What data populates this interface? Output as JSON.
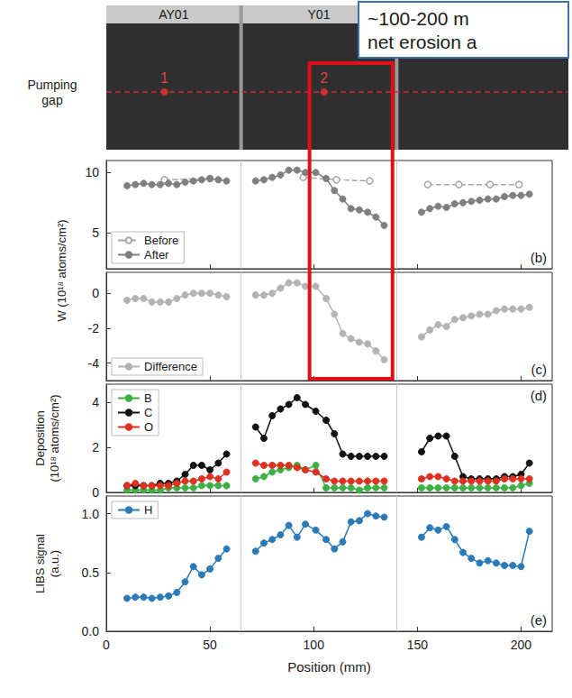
{
  "photo": {
    "side_label": "Pumping gap",
    "tiles": [
      "AY01",
      "Y01"
    ],
    "points": [
      {
        "label": "1",
        "position": 28
      },
      {
        "label": "2",
        "position": 105
      }
    ]
  },
  "annotation": {
    "lines": [
      "~100-200 m",
      "net erosion a"
    ]
  },
  "highlight": {
    "from": 98,
    "to": 138
  },
  "tile_edges": [
    65,
    140
  ],
  "chart_data": [
    {
      "type": "line",
      "label": "(b)",
      "ylabel": "W (10¹⁸ atoms/cm²)",
      "xlim": [
        0,
        215
      ],
      "xticks": [
        0,
        50,
        100,
        150,
        200
      ],
      "ylim": [
        2,
        11
      ],
      "yticks": [
        5,
        10
      ],
      "tick_labels": "y",
      "legend": "lower left",
      "series": [
        {
          "name": "Before",
          "color": "#a6a6a6",
          "marker": "open_circle",
          "line_style": "dashed",
          "x": [
            28,
            50,
            65,
            95,
            111,
            127,
            145,
            155,
            170,
            185,
            199
          ],
          "values": [
            9.4,
            9.5,
            null,
            9.6,
            9.4,
            9.3,
            null,
            9.0,
            9.0,
            9.0,
            9.0
          ]
        },
        {
          "name": "After",
          "color": "#7f7f7f",
          "marker": "circle",
          "line_style": "solid",
          "x": [
            10,
            14,
            18,
            22,
            26,
            30,
            34,
            38,
            42,
            46,
            50,
            54,
            58,
            65,
            72,
            76,
            80,
            84,
            88,
            92,
            96,
            101,
            106,
            110,
            114,
            118,
            122,
            126,
            130,
            134,
            145,
            152,
            156,
            160,
            164,
            168,
            172,
            176,
            180,
            184,
            188,
            192,
            196,
            200,
            204
          ],
          "values": [
            8.9,
            9.0,
            9.1,
            9.0,
            9.0,
            9.1,
            9.0,
            9.2,
            9.3,
            9.4,
            9.5,
            9.4,
            9.3,
            null,
            9.3,
            9.4,
            9.6,
            9.8,
            10.2,
            10.2,
            10.0,
            10.0,
            9.5,
            8.5,
            7.8,
            7.0,
            6.9,
            6.7,
            6.3,
            5.6,
            null,
            6.7,
            7.0,
            7.2,
            7.1,
            7.4,
            7.5,
            7.6,
            7.7,
            7.8,
            7.8,
            8.0,
            8.1,
            8.1,
            8.2
          ]
        }
      ]
    },
    {
      "type": "line",
      "label": "(c)",
      "xlim": [
        0,
        215
      ],
      "xticks": [
        0,
        50,
        100,
        150,
        200
      ],
      "ylim": [
        -5,
        1.2
      ],
      "yticks": [
        -4,
        -2,
        0
      ],
      "tick_labels": "y",
      "legend": "lower left",
      "series": [
        {
          "name": "Difference",
          "color": "#b3b3b3",
          "marker": "circle",
          "line_style": "solid",
          "x": [
            10,
            14,
            18,
            22,
            26,
            30,
            34,
            38,
            42,
            46,
            50,
            54,
            58,
            65,
            72,
            76,
            80,
            84,
            88,
            92,
            96,
            101,
            106,
            110,
            114,
            118,
            122,
            126,
            130,
            134,
            145,
            152,
            156,
            160,
            164,
            168,
            172,
            176,
            180,
            184,
            188,
            192,
            196,
            200,
            204
          ],
          "values": [
            -0.4,
            -0.3,
            -0.3,
            -0.5,
            -0.5,
            -0.5,
            -0.3,
            -0.1,
            0.0,
            0.0,
            0.0,
            -0.1,
            -0.2,
            null,
            -0.1,
            -0.1,
            0.0,
            0.3,
            0.6,
            0.6,
            0.4,
            0.4,
            -0.3,
            -1.2,
            -2.3,
            -2.6,
            -2.8,
            -2.9,
            -3.3,
            -3.8,
            null,
            -2.5,
            -2.1,
            -1.8,
            -1.9,
            -1.5,
            -1.4,
            -1.3,
            -1.2,
            -1.2,
            -1.0,
            -0.9,
            -0.9,
            -0.9,
            -0.8
          ]
        }
      ]
    },
    {
      "type": "line",
      "label": "(d)",
      "ylabel": "Deposition\n(10¹⁸ atoms/cm²)",
      "xlim": [
        0,
        215
      ],
      "xticks": [
        0,
        50,
        100,
        150,
        200
      ],
      "ylim": [
        0,
        4.8
      ],
      "yticks": [
        0,
        2,
        4
      ],
      "tick_labels": "y",
      "legend": "upper left",
      "series": [
        {
          "name": "B",
          "color": "#3cb043",
          "marker": "circle",
          "line_style": "solid",
          "x": [
            10,
            14,
            18,
            22,
            26,
            30,
            34,
            38,
            42,
            46,
            50,
            54,
            58,
            65,
            72,
            76,
            80,
            84,
            88,
            92,
            96,
            101,
            106,
            110,
            114,
            118,
            122,
            126,
            130,
            134,
            145,
            152,
            156,
            160,
            164,
            168,
            172,
            176,
            180,
            184,
            188,
            192,
            196,
            200,
            204
          ],
          "values": [
            0.1,
            0.1,
            0.1,
            0.1,
            0.1,
            0.2,
            0.2,
            0.2,
            0.2,
            0.3,
            0.3,
            0.3,
            0.3,
            null,
            0.6,
            0.7,
            0.9,
            1.0,
            1.1,
            1.2,
            1.0,
            1.2,
            0.2,
            0.2,
            0.2,
            0.2,
            0.1,
            0.2,
            0.2,
            0.2,
            null,
            0.2,
            0.2,
            0.2,
            0.2,
            0.2,
            0.2,
            0.2,
            0.2,
            0.2,
            0.2,
            0.2,
            0.2,
            0.3,
            0.4
          ]
        },
        {
          "name": "C",
          "color": "#111111",
          "marker": "circle",
          "line_style": "solid",
          "x": [
            10,
            14,
            18,
            22,
            26,
            30,
            34,
            38,
            42,
            46,
            50,
            54,
            58,
            65,
            72,
            76,
            80,
            84,
            88,
            92,
            96,
            101,
            106,
            110,
            114,
            118,
            122,
            126,
            130,
            134,
            145,
            152,
            156,
            160,
            164,
            168,
            172,
            176,
            180,
            184,
            188,
            192,
            196,
            200,
            204
          ],
          "values": [
            0.3,
            0.3,
            0.3,
            0.3,
            0.4,
            0.4,
            0.5,
            0.8,
            1.2,
            1.2,
            1.0,
            1.3,
            1.7,
            null,
            2.9,
            2.4,
            3.4,
            3.7,
            3.9,
            4.2,
            3.9,
            3.6,
            3.2,
            2.6,
            1.7,
            1.6,
            1.6,
            1.6,
            1.6,
            1.6,
            null,
            1.8,
            2.4,
            2.5,
            2.5,
            1.6,
            0.7,
            0.6,
            0.6,
            0.6,
            0.6,
            0.7,
            0.7,
            0.8,
            1.3
          ]
        },
        {
          "name": "O",
          "color": "#e0301e",
          "marker": "circle",
          "line_style": "solid",
          "x": [
            10,
            14,
            18,
            22,
            26,
            30,
            34,
            38,
            42,
            46,
            50,
            54,
            58,
            65,
            72,
            76,
            80,
            84,
            88,
            92,
            96,
            101,
            106,
            110,
            114,
            118,
            122,
            126,
            130,
            134,
            145,
            152,
            156,
            160,
            164,
            168,
            172,
            176,
            180,
            184,
            188,
            192,
            196,
            200,
            204
          ],
          "values": [
            0.3,
            0.4,
            0.3,
            0.3,
            0.3,
            0.3,
            0.4,
            0.5,
            0.5,
            0.6,
            0.7,
            0.6,
            0.9,
            null,
            1.3,
            1.2,
            1.2,
            1.2,
            1.2,
            1.1,
            1.0,
            0.9,
            0.6,
            0.5,
            0.5,
            0.5,
            0.5,
            0.5,
            0.5,
            0.5,
            null,
            0.6,
            0.7,
            0.7,
            0.6,
            0.5,
            0.5,
            0.5,
            0.5,
            0.5,
            0.5,
            0.6,
            0.6,
            0.6,
            0.6
          ]
        }
      ]
    },
    {
      "type": "line",
      "label": "(e)",
      "ylabel": "LIBS signal\n(a.u.)",
      "xlabel": "Position (mm)",
      "xlim": [
        0,
        215
      ],
      "xticks": [
        0,
        50,
        100,
        150,
        200
      ],
      "ylim": [
        0,
        1.15
      ],
      "yticks": [
        {
          "value": 0,
          "label": "0.0"
        },
        0.5,
        {
          "value": 1,
          "label": "1.0"
        }
      ],
      "tick_labels": true,
      "legend": "upper left",
      "series": [
        {
          "name": "H",
          "color": "#2a7ab8",
          "marker": "circle",
          "line_style": "solid",
          "x": [
            10,
            14,
            18,
            22,
            26,
            30,
            34,
            38,
            42,
            46,
            50,
            54,
            58,
            65,
            72,
            76,
            80,
            84,
            88,
            92,
            96,
            101,
            106,
            110,
            114,
            118,
            122,
            126,
            130,
            134,
            145,
            152,
            156,
            160,
            164,
            168,
            172,
            176,
            180,
            184,
            188,
            192,
            196,
            200,
            204
          ],
          "values": [
            0.28,
            0.29,
            0.29,
            0.28,
            0.29,
            0.3,
            0.33,
            0.42,
            0.55,
            0.48,
            0.53,
            0.62,
            0.7,
            null,
            0.68,
            0.75,
            0.78,
            0.82,
            0.9,
            0.8,
            0.91,
            0.86,
            0.78,
            0.7,
            0.76,
            0.93,
            0.94,
            1.0,
            0.98,
            0.97,
            null,
            0.8,
            0.88,
            0.86,
            0.89,
            0.78,
            0.67,
            0.62,
            0.58,
            0.6,
            0.58,
            0.56,
            0.56,
            0.55,
            0.85
          ]
        }
      ]
    }
  ]
}
